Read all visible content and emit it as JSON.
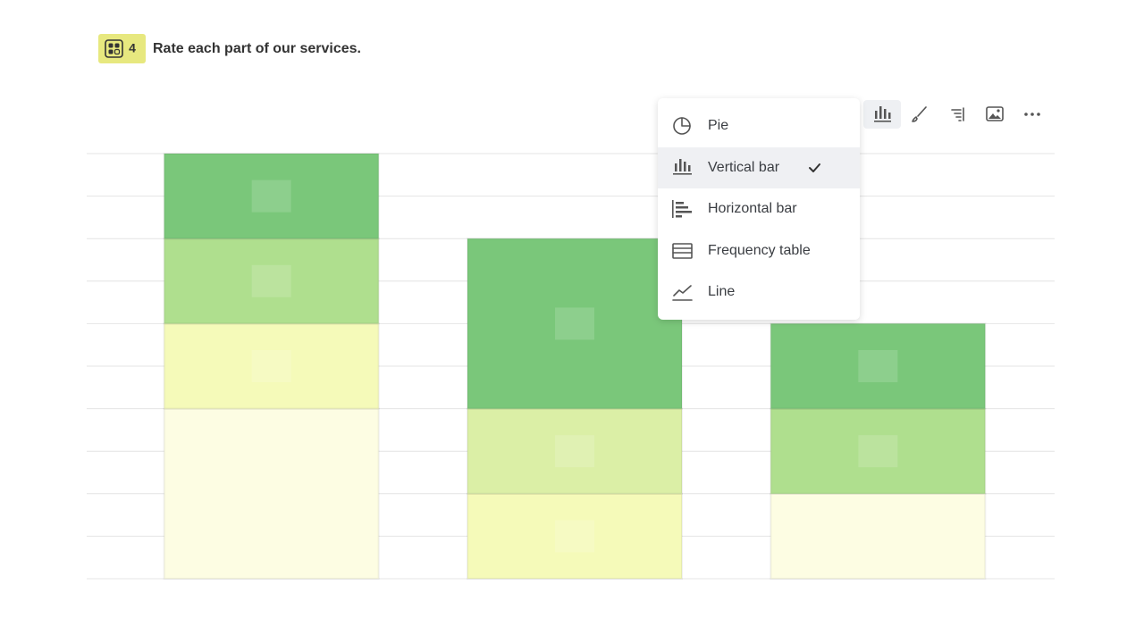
{
  "question": {
    "number": "4",
    "text": "Rate each part of our services."
  },
  "menu": {
    "items": [
      {
        "label": "Pie"
      },
      {
        "label": "Vertical bar",
        "selected": true
      },
      {
        "label": "Horizontal bar"
      },
      {
        "label": "Frequency table"
      },
      {
        "label": "Line"
      }
    ]
  },
  "chart_data": {
    "type": "stacked_bar",
    "categories": [
      null,
      null,
      null
    ],
    "series": [
      {
        "color": "#fdfde3",
        "values": [
          4,
          0,
          2
        ]
      },
      {
        "color": "#f5fab9",
        "values": [
          2,
          2,
          0
        ]
      },
      {
        "color": "#dbefa6",
        "values": [
          0,
          2,
          0
        ]
      },
      {
        "color": "#afdf8e",
        "values": [
          2,
          0,
          2
        ]
      },
      {
        "color": "#7ac77a",
        "values": [
          2,
          4,
          2
        ]
      }
    ],
    "ylim": [
      0,
      10
    ],
    "yticks": [
      0,
      1,
      2,
      3,
      4,
      5,
      6,
      7,
      8,
      9,
      10
    ],
    "grid": true
  }
}
